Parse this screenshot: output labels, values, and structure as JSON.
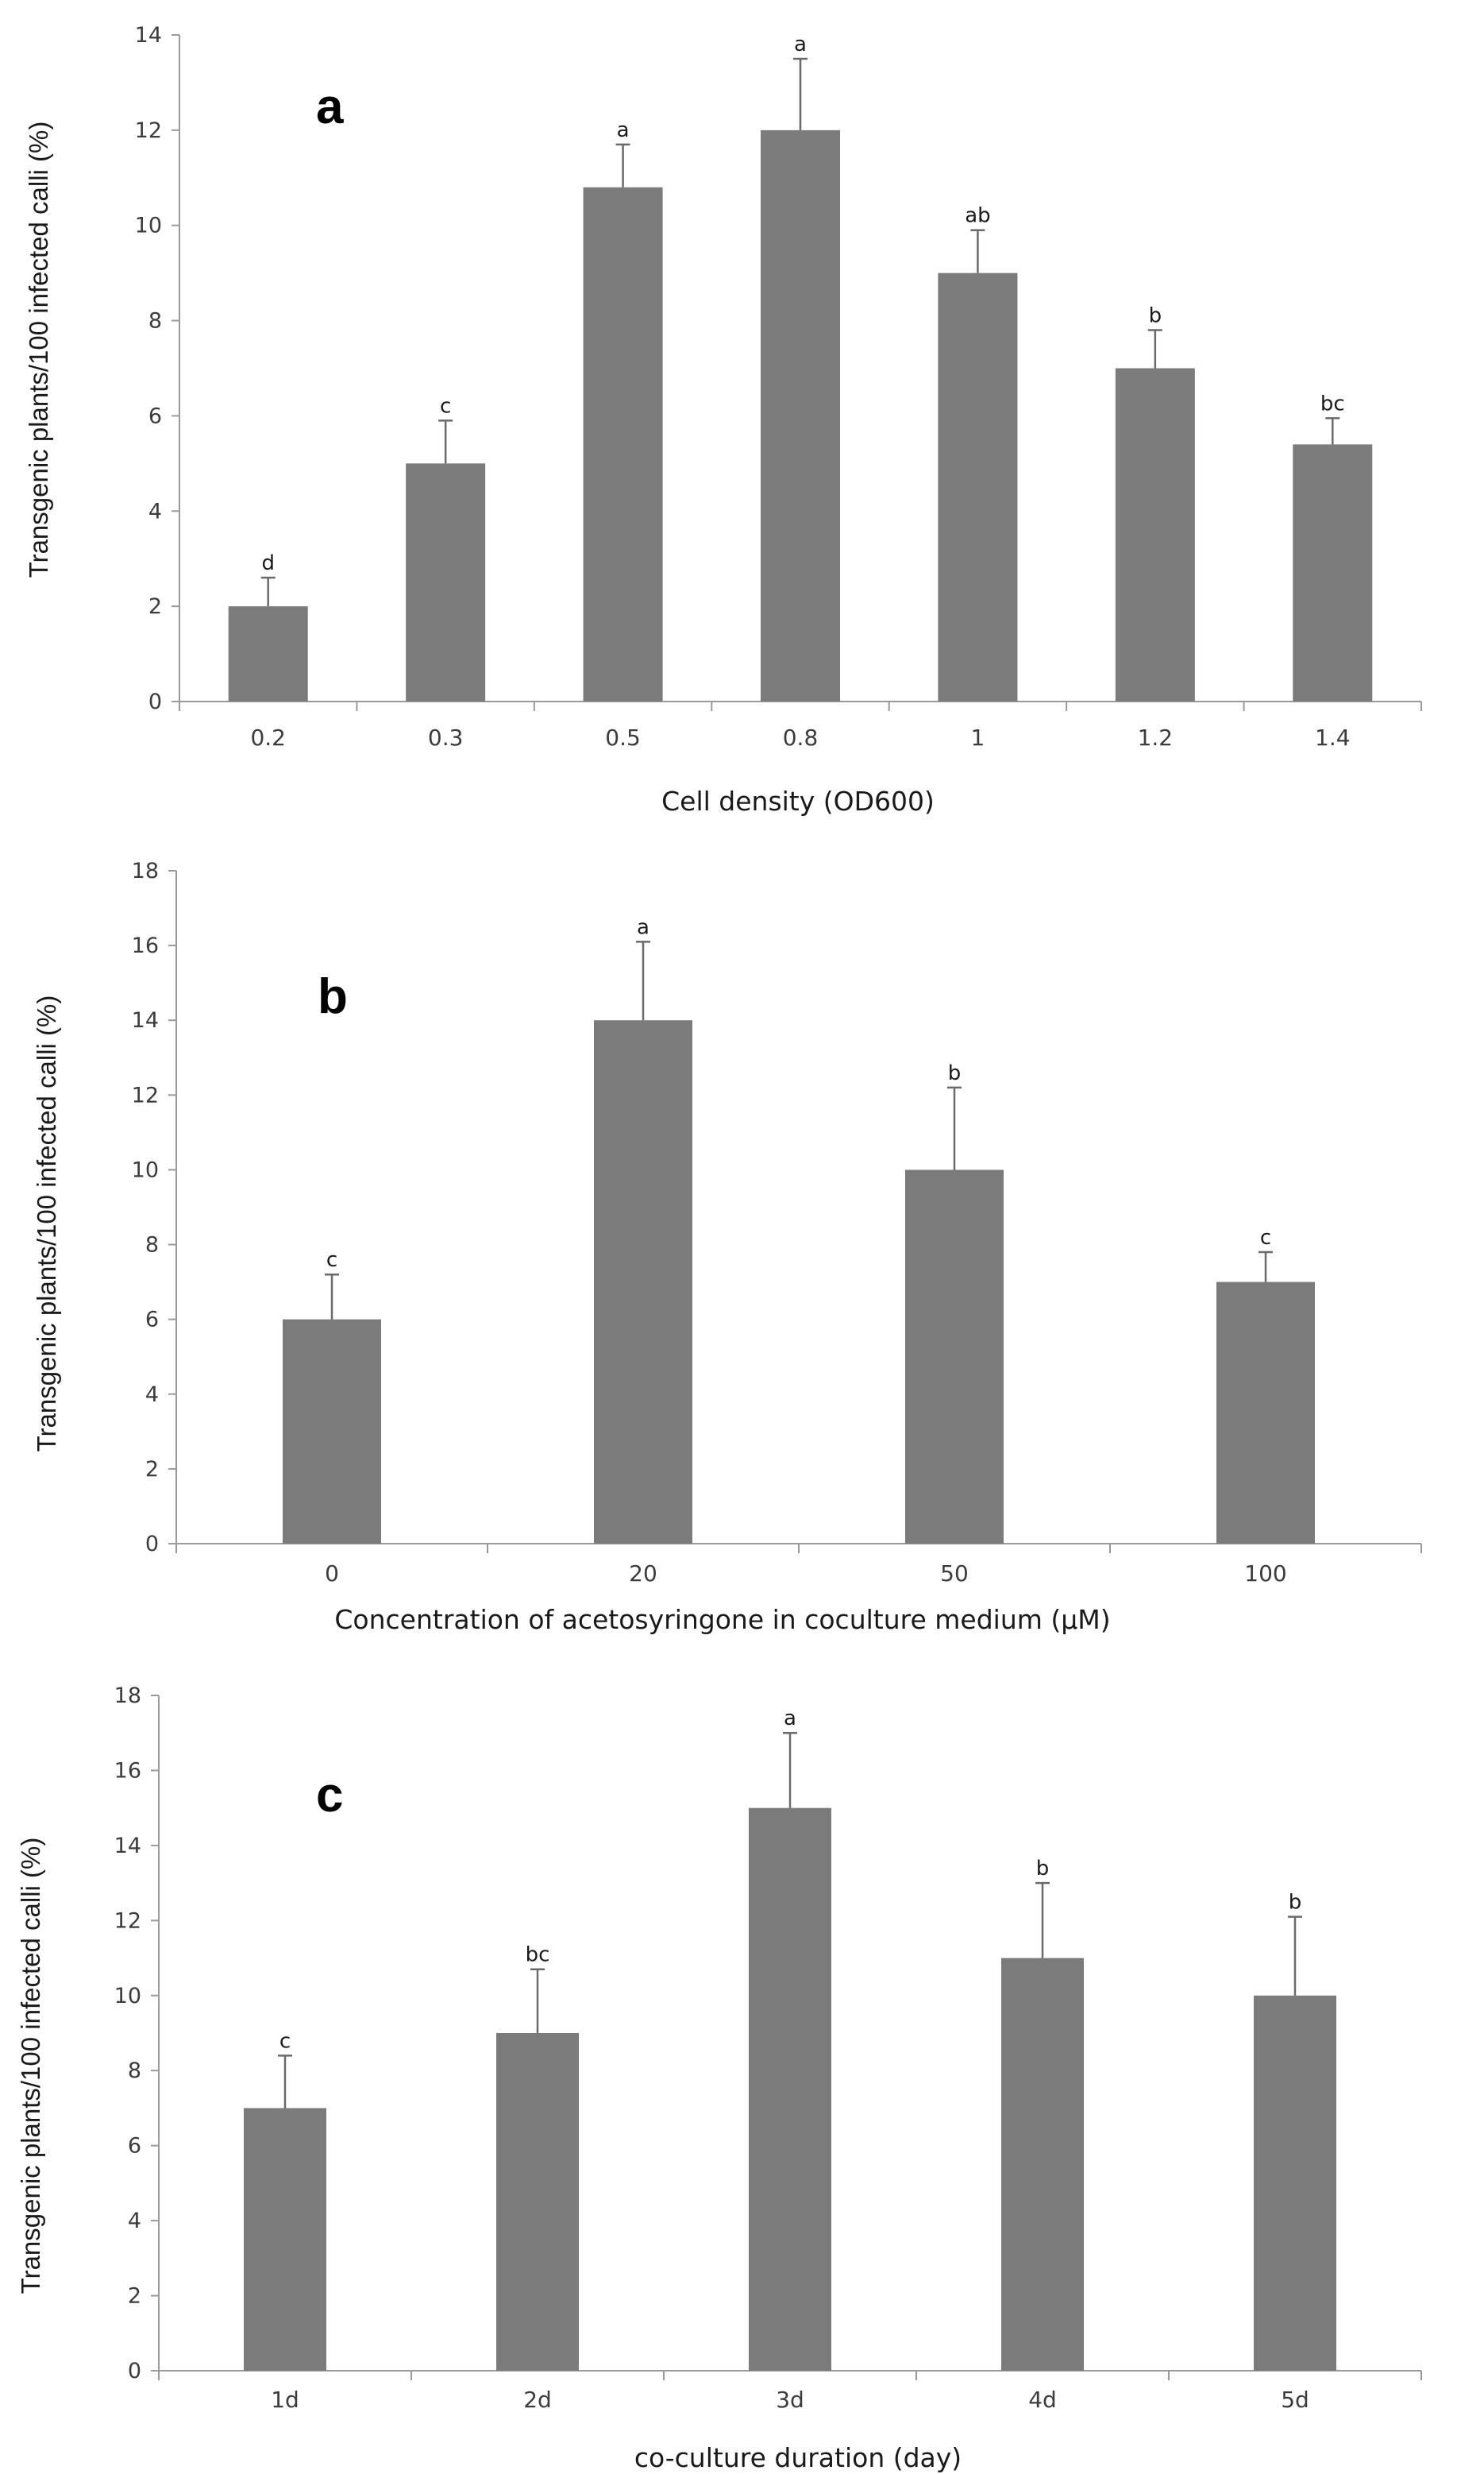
{
  "chart_data": [
    {
      "type": "bar",
      "panel_label": "a",
      "xlabel": "Cell density (OD600)",
      "ylabel": "Transgenic plants/100 infected calli (%)",
      "categories": [
        "0.2",
        "0.3",
        "0.5",
        "0.8",
        "1",
        "1.2",
        "1.4"
      ],
      "values": [
        2,
        5,
        10.8,
        12,
        9,
        7,
        5.4
      ],
      "errors": [
        0.6,
        0.9,
        0.9,
        1.5,
        0.9,
        0.8,
        0.55
      ],
      "significance": [
        "d",
        "c",
        "a",
        "a",
        "ab",
        "b",
        "bc"
      ],
      "ylim": [
        0,
        14
      ],
      "yticks": [
        "0",
        "2",
        "4",
        "6",
        "8",
        "10",
        "12",
        "14"
      ],
      "bar_color": "#7b7b7b"
    },
    {
      "type": "bar",
      "panel_label": "b",
      "xlabel": "Concentration of acetosyringone in coculture medium (µM)",
      "ylabel": "Transgenic plants/100 infected calli (%)",
      "categories": [
        "0",
        "20",
        "50",
        "100"
      ],
      "values": [
        6,
        14,
        10,
        7
      ],
      "errors": [
        1.2,
        2.1,
        2.2,
        0.8
      ],
      "significance": [
        "c",
        "a",
        "b",
        "c"
      ],
      "ylim": [
        0,
        18
      ],
      "yticks": [
        "0",
        "2",
        "4",
        "6",
        "8",
        "10",
        "12",
        "14",
        "16",
        "18"
      ],
      "bar_color": "#7b7b7b"
    },
    {
      "type": "bar",
      "panel_label": "c",
      "xlabel": "co-culture duration (day)",
      "ylabel": "Transgenic plants/100 infected calli (%)",
      "categories": [
        "1d",
        "2d",
        "3d",
        "4d",
        "5d"
      ],
      "values": [
        7,
        9,
        15,
        11,
        10
      ],
      "errors": [
        1.4,
        1.7,
        2,
        2,
        2.1
      ],
      "significance": [
        "c",
        "bc",
        "a",
        "b",
        "b"
      ],
      "ylim": [
        0,
        18
      ],
      "yticks": [
        "0",
        "2",
        "4",
        "6",
        "8",
        "10",
        "12",
        "14",
        "16",
        "18"
      ],
      "bar_color": "#7b7b7b"
    }
  ]
}
